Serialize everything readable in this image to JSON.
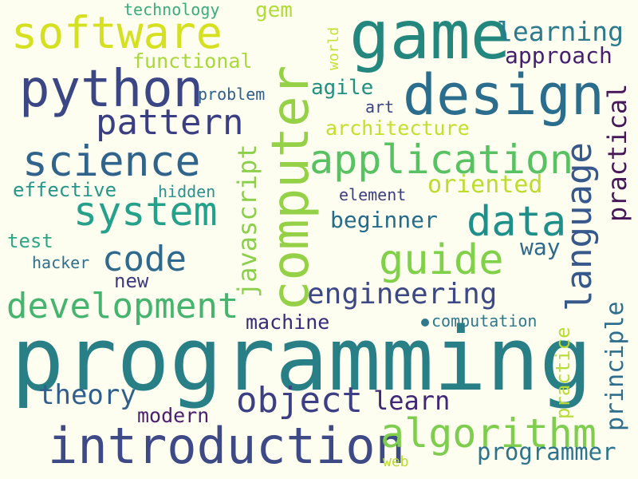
{
  "word_cloud": {
    "background_color": "#fdfdf0",
    "words": [
      {
        "text": "programming",
        "color": "#297f86"
      },
      {
        "text": "computer",
        "color": "#95d147"
      },
      {
        "text": "game",
        "color": "#23877d"
      },
      {
        "text": "design",
        "color": "#2b6d8c"
      },
      {
        "text": "introduction",
        "color": "#3e4a86"
      },
      {
        "text": "python",
        "color": "#3b4685"
      },
      {
        "text": "software",
        "color": "#d5e021"
      },
      {
        "text": "science",
        "color": "#31648d"
      },
      {
        "text": "application",
        "color": "#58c262"
      },
      {
        "text": "system",
        "color": "#25a08a"
      },
      {
        "text": "development",
        "color": "#45b46e"
      },
      {
        "text": "data",
        "color": "#1f8f8a"
      },
      {
        "text": "algorithm",
        "color": "#7ecd4e"
      },
      {
        "text": "guide",
        "color": "#81d04a"
      },
      {
        "text": "language",
        "color": "#37588b"
      },
      {
        "text": "pattern",
        "color": "#3a3f84"
      },
      {
        "text": "object",
        "color": "#3c3f83"
      },
      {
        "text": "code",
        "color": "#2e6a8d"
      },
      {
        "text": "engineering",
        "color": "#3d4984"
      },
      {
        "text": "learning",
        "color": "#2b7a8d"
      },
      {
        "text": "javascript",
        "color": "#8ccf4c"
      },
      {
        "text": "practical",
        "color": "#46185a"
      },
      {
        "text": "principle",
        "color": "#2f6f8d"
      },
      {
        "text": "theory",
        "color": "#305f8d"
      },
      {
        "text": "programmer",
        "color": "#2c738d"
      },
      {
        "text": "learn",
        "color": "#40277a"
      },
      {
        "text": "approach",
        "color": "#461e6f"
      },
      {
        "text": "oriented",
        "color": "#bcdc2f"
      },
      {
        "text": "architecture",
        "color": "#c2df2c"
      },
      {
        "text": "beginner",
        "color": "#246c8b"
      },
      {
        "text": "modern",
        "color": "#4c2070"
      },
      {
        "text": "functional",
        "color": "#a8d83b"
      },
      {
        "text": "machine",
        "color": "#3a2a7c"
      },
      {
        "text": "way",
        "color": "#2e698b"
      },
      {
        "text": "agile",
        "color": "#22907f"
      },
      {
        "text": "practice",
        "color": "#b7dd35"
      },
      {
        "text": "effective",
        "color": "#23978a"
      },
      {
        "text": "gem",
        "color": "#b0db38"
      },
      {
        "text": "new",
        "color": "#3e3a80"
      },
      {
        "text": "computation",
        "color": "#2f798d"
      },
      {
        "text": "test",
        "color": "#2ea785"
      },
      {
        "text": "technology",
        "color": "#3bab7e"
      },
      {
        "text": "problem",
        "color": "#2f5f8b"
      },
      {
        "text": "hidden",
        "color": "#2d8f8e"
      },
      {
        "text": "element",
        "color": "#3b3f80"
      },
      {
        "text": "hacker",
        "color": "#2f6f8d"
      },
      {
        "text": "world",
        "color": "#c8e030"
      },
      {
        "text": "art",
        "color": "#3a4384"
      },
      {
        "text": "web",
        "color": "#b8dc33"
      }
    ]
  }
}
